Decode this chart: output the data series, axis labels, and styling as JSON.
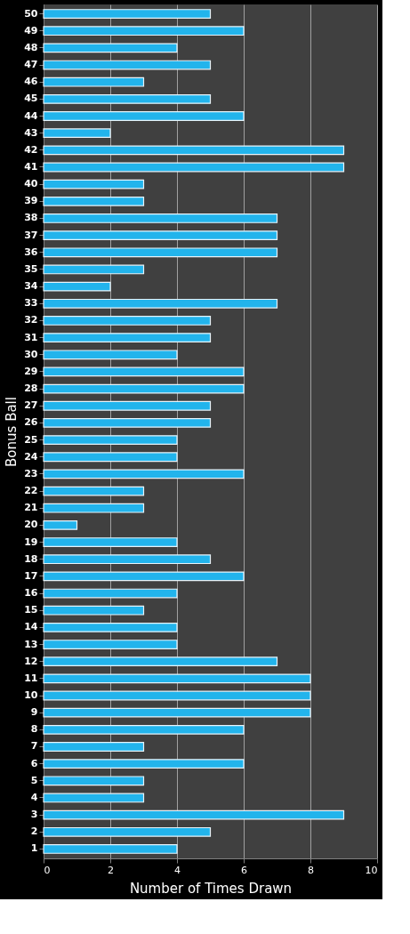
{
  "chart_data": {
    "type": "bar",
    "orientation": "horizontal",
    "xlabel": "Number of Times Drawn",
    "ylabel": "Bonus Ball",
    "categories": [
      "50",
      "49",
      "48",
      "47",
      "46",
      "45",
      "44",
      "43",
      "42",
      "41",
      "40",
      "39",
      "38",
      "37",
      "36",
      "35",
      "34",
      "33",
      "32",
      "31",
      "30",
      "29",
      "28",
      "27",
      "26",
      "25",
      "24",
      "23",
      "22",
      "21",
      "20",
      "19",
      "18",
      "17",
      "16",
      "15",
      "14",
      "13",
      "12",
      "11",
      "10",
      "9",
      "8",
      "7",
      "6",
      "5",
      "4",
      "3",
      "2",
      "1"
    ],
    "values": [
      5,
      6,
      4,
      5,
      3,
      5,
      6,
      2,
      9,
      9,
      3,
      3,
      7,
      7,
      7,
      3,
      2,
      7,
      5,
      5,
      4,
      6,
      6,
      5,
      5,
      4,
      4,
      6,
      3,
      3,
      1,
      4,
      5,
      6,
      4,
      3,
      4,
      4,
      7,
      8,
      8,
      8,
      6,
      3,
      6,
      3,
      3,
      9,
      5,
      4
    ],
    "color": "#22b4ec",
    "xlim": [
      0,
      10
    ],
    "xticks": [
      0,
      2,
      4,
      6,
      8,
      10
    ],
    "grid": "x"
  }
}
